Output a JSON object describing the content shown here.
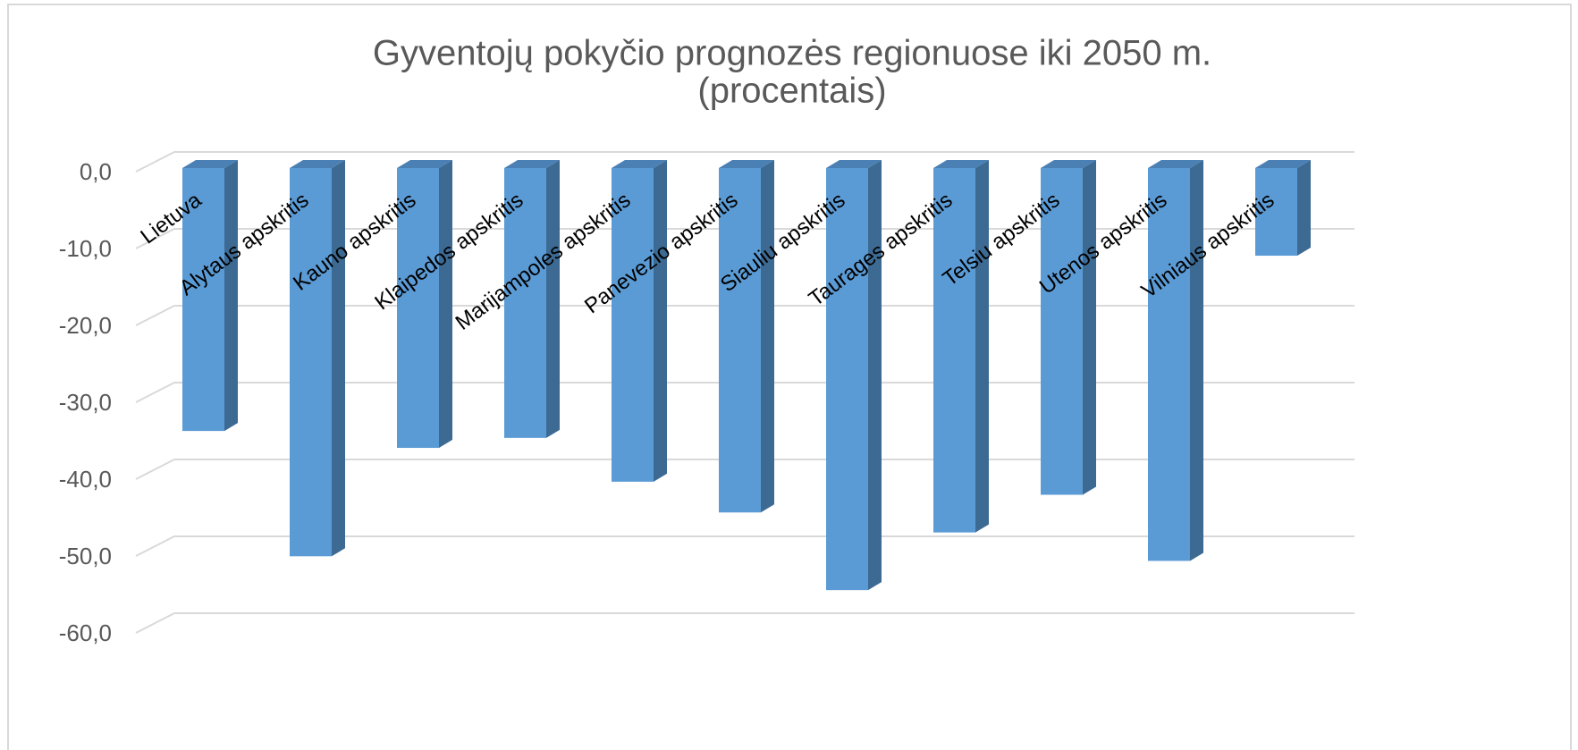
{
  "chart_data": {
    "type": "bar3d",
    "title": "Gyventojų pokyčio prognozės regionuose iki 2050 m.",
    "subtitle": "(procentais)",
    "categories": [
      "Lietuva",
      "Alytaus apskritis",
      "Kauno apskritis",
      "Klaipedos apskritis",
      "Marijampoles apskritis",
      "Panevezio apskritis",
      "Siauliu apskritis",
      "Taurages apskritis",
      "Telsiu apskritis",
      "Utenos apskritis",
      "Vilniaus apskritis"
    ],
    "values": [
      -34.2,
      -50.5,
      -36.4,
      -35.1,
      -40.8,
      -44.8,
      -54.9,
      -47.4,
      -42.5,
      -51.1,
      -11.4
    ],
    "color": "#5b9bd5",
    "ylim": [
      0,
      -60
    ],
    "yticks": [
      {
        "value": 0,
        "label": "0,0"
      },
      {
        "value": -10,
        "label": "-10,0"
      },
      {
        "value": -20,
        "label": "-20,0"
      },
      {
        "value": -30,
        "label": "-30,0"
      },
      {
        "value": -40,
        "label": "-40,0"
      },
      {
        "value": -50,
        "label": "-50,0"
      },
      {
        "value": -60,
        "label": "-60,0"
      }
    ],
    "grid": true
  }
}
